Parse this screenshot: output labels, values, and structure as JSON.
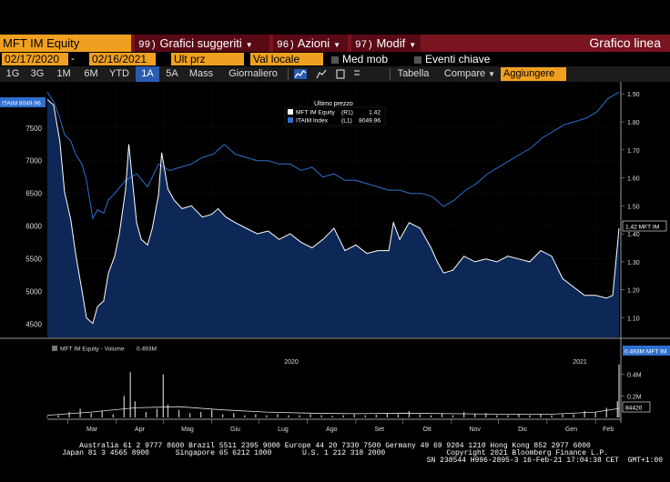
{
  "toolbar": {
    "ticker": "MFT IM Equity",
    "menu": [
      {
        "num": "99)",
        "label": "Grafici suggeriti"
      },
      {
        "num": "96)",
        "label": "Azioni"
      },
      {
        "num": "97)",
        "label": "Modif"
      }
    ],
    "title": "Grafico linea"
  },
  "settings": {
    "date_from": "02/17/2020",
    "date_to": "02/16/2021",
    "price_field": "Ult prz",
    "currency": "Val locale",
    "moving_avg": "Med mob",
    "key_events": "Eventi chiave"
  },
  "ranges": {
    "buttons": [
      "1G",
      "3G",
      "1M",
      "6M",
      "YTD",
      "1A",
      "5A",
      "Mass",
      "Giornaliero"
    ],
    "active": "1A",
    "table": "Tabella",
    "compare": "Compare",
    "add": "Aggiungere"
  },
  "legend": {
    "title": "Ultimo prezzo",
    "rows": [
      {
        "name": "MFT IM Equity",
        "axis": "(R1)",
        "value": "1.42",
        "color": "#ffffff"
      },
      {
        "name": "ITAIM Index",
        "axis": "(L1)",
        "value": "8049.96",
        "color": "#2f6fd0"
      }
    ]
  },
  "volume_legend": {
    "label": "MFT IM Equity - Volume",
    "value": "0.493M"
  },
  "badges": {
    "left": "ITAIM 8049.96",
    "right": "1.42 MFT IM",
    "vol_last": "0.493M MFT IM",
    "vol_ma": "84420"
  },
  "footer": {
    "line1": "Australia 61 2 9777 8600 Brazil 5511 2395 9000 Europe 44 20 7330 7500 Germany 49 69 9204 1210 Hong Kong 852 2977 6000",
    "line2": "Japan 81 3 4565 8900      Singapore 65 6212 1000       U.S. 1 212 318 2000              Copyright 2021 Bloomberg Finance L.P.",
    "line3": "SN 238544 H996-2895-3 16-Feb-21 17:04:38 CET  GMT+1:00"
  },
  "chart_data": {
    "type": "line",
    "title": "",
    "x_axis": {
      "months": [
        "Mar",
        "Apr",
        "Mag",
        "Giu",
        "Lug",
        "Ago",
        "Set",
        "Ott",
        "Nov",
        "Dic",
        "Gen",
        "Feb"
      ],
      "years": [
        "2020",
        "2021"
      ],
      "range": [
        "2020-02-17",
        "2021-02-16"
      ]
    },
    "left_axis": {
      "ticks": [
        4500,
        5000,
        5500,
        6000,
        6500,
        7000,
        7500
      ],
      "range": [
        4300,
        8150
      ]
    },
    "right_axis": {
      "ticks": [
        "1.10",
        "1.20",
        "1.30",
        "1.40",
        "1.50",
        "1.60",
        "1.70",
        "1.80",
        "1.90"
      ],
      "range": [
        1.03,
        1.93
      ]
    },
    "volume_axis": {
      "ticks": [
        "0.2M",
        "0.4M"
      ],
      "range": [
        0,
        0.6
      ]
    },
    "series": [
      {
        "name": "MFT IM Equity",
        "axis": "right",
        "color": "#ffffff",
        "fill": "#0e2a5c",
        "points": [
          [
            "2020-02-17",
            1.88
          ],
          [
            "2020-02-21",
            1.86
          ],
          [
            "2020-02-25",
            1.73
          ],
          [
            "2020-02-28",
            1.55
          ],
          [
            "2020-03-03",
            1.45
          ],
          [
            "2020-03-06",
            1.33
          ],
          [
            "2020-03-10",
            1.2
          ],
          [
            "2020-03-13",
            1.1
          ],
          [
            "2020-03-17",
            1.08
          ],
          [
            "2020-03-20",
            1.14
          ],
          [
            "2020-03-24",
            1.16
          ],
          [
            "2020-03-27",
            1.26
          ],
          [
            "2020-03-31",
            1.32
          ],
          [
            "2020-04-03",
            1.4
          ],
          [
            "2020-04-07",
            1.56
          ],
          [
            "2020-04-09",
            1.72
          ],
          [
            "2020-04-14",
            1.44
          ],
          [
            "2020-04-17",
            1.38
          ],
          [
            "2020-04-21",
            1.36
          ],
          [
            "2020-04-24",
            1.42
          ],
          [
            "2020-04-28",
            1.54
          ],
          [
            "2020-04-30",
            1.69
          ],
          [
            "2020-05-04",
            1.56
          ],
          [
            "2020-05-08",
            1.52
          ],
          [
            "2020-05-13",
            1.49
          ],
          [
            "2020-05-19",
            1.5
          ],
          [
            "2020-05-26",
            1.46
          ],
          [
            "2020-06-01",
            1.47
          ],
          [
            "2020-06-05",
            1.49
          ],
          [
            "2020-06-10",
            1.46
          ],
          [
            "2020-06-16",
            1.44
          ],
          [
            "2020-06-23",
            1.42
          ],
          [
            "2020-06-30",
            1.4
          ],
          [
            "2020-07-07",
            1.41
          ],
          [
            "2020-07-14",
            1.38
          ],
          [
            "2020-07-21",
            1.4
          ],
          [
            "2020-07-28",
            1.37
          ],
          [
            "2020-08-04",
            1.35
          ],
          [
            "2020-08-11",
            1.38
          ],
          [
            "2020-08-18",
            1.42
          ],
          [
            "2020-08-25",
            1.34
          ],
          [
            "2020-09-01",
            1.36
          ],
          [
            "2020-09-08",
            1.33
          ],
          [
            "2020-09-15",
            1.34
          ],
          [
            "2020-09-22",
            1.34
          ],
          [
            "2020-09-25",
            1.44
          ],
          [
            "2020-09-29",
            1.38
          ],
          [
            "2020-10-05",
            1.44
          ],
          [
            "2020-10-12",
            1.42
          ],
          [
            "2020-10-19",
            1.35
          ],
          [
            "2020-10-23",
            1.3
          ],
          [
            "2020-10-27",
            1.26
          ],
          [
            "2020-11-02",
            1.27
          ],
          [
            "2020-11-09",
            1.32
          ],
          [
            "2020-11-16",
            1.3
          ],
          [
            "2020-11-23",
            1.31
          ],
          [
            "2020-11-30",
            1.3
          ],
          [
            "2020-12-07",
            1.32
          ],
          [
            "2020-12-14",
            1.31
          ],
          [
            "2020-12-21",
            1.3
          ],
          [
            "2020-12-28",
            1.34
          ],
          [
            "2021-01-04",
            1.32
          ],
          [
            "2021-01-11",
            1.24
          ],
          [
            "2021-01-18",
            1.21
          ],
          [
            "2021-01-25",
            1.18
          ],
          [
            "2021-02-01",
            1.18
          ],
          [
            "2021-02-08",
            1.17
          ],
          [
            "2021-02-12",
            1.18
          ],
          [
            "2021-02-16",
            1.42
          ]
        ]
      },
      {
        "name": "ITAIM Index",
        "axis": "left",
        "color": "#2f6fd0",
        "points": [
          [
            "2020-02-17",
            8050
          ],
          [
            "2020-02-21",
            7900
          ],
          [
            "2020-02-25",
            7650
          ],
          [
            "2020-02-28",
            7400
          ],
          [
            "2020-03-03",
            7300
          ],
          [
            "2020-03-06",
            7100
          ],
          [
            "2020-03-10",
            6950
          ],
          [
            "2020-03-13",
            6700
          ],
          [
            "2020-03-17",
            6120
          ],
          [
            "2020-03-20",
            6250
          ],
          [
            "2020-03-24",
            6200
          ],
          [
            "2020-03-27",
            6400
          ],
          [
            "2020-03-31",
            6500
          ],
          [
            "2020-04-07",
            6700
          ],
          [
            "2020-04-14",
            6800
          ],
          [
            "2020-04-21",
            6600
          ],
          [
            "2020-04-28",
            6950
          ],
          [
            "2020-05-05",
            6850
          ],
          [
            "2020-05-12",
            6900
          ],
          [
            "2020-05-19",
            6950
          ],
          [
            "2020-05-26",
            7050
          ],
          [
            "2020-06-02",
            7100
          ],
          [
            "2020-06-09",
            7250
          ],
          [
            "2020-06-16",
            7100
          ],
          [
            "2020-06-23",
            7050
          ],
          [
            "2020-06-30",
            7000
          ],
          [
            "2020-07-07",
            7000
          ],
          [
            "2020-07-14",
            6950
          ],
          [
            "2020-07-21",
            6950
          ],
          [
            "2020-07-28",
            6850
          ],
          [
            "2020-08-04",
            6900
          ],
          [
            "2020-08-11",
            6750
          ],
          [
            "2020-08-18",
            6800
          ],
          [
            "2020-08-25",
            6700
          ],
          [
            "2020-09-01",
            6700
          ],
          [
            "2020-09-08",
            6650
          ],
          [
            "2020-09-15",
            6600
          ],
          [
            "2020-09-22",
            6550
          ],
          [
            "2020-09-29",
            6550
          ],
          [
            "2020-10-06",
            6500
          ],
          [
            "2020-10-13",
            6500
          ],
          [
            "2020-10-20",
            6450
          ],
          [
            "2020-10-27",
            6300
          ],
          [
            "2020-11-03",
            6400
          ],
          [
            "2020-11-10",
            6550
          ],
          [
            "2020-11-17",
            6650
          ],
          [
            "2020-11-24",
            6800
          ],
          [
            "2020-12-01",
            6900
          ],
          [
            "2020-12-08",
            7000
          ],
          [
            "2020-12-15",
            7100
          ],
          [
            "2020-12-22",
            7200
          ],
          [
            "2020-12-29",
            7350
          ],
          [
            "2021-01-05",
            7450
          ],
          [
            "2021-01-12",
            7550
          ],
          [
            "2021-01-19",
            7600
          ],
          [
            "2021-01-26",
            7650
          ],
          [
            "2021-02-02",
            7750
          ],
          [
            "2021-02-09",
            7950
          ],
          [
            "2021-02-16",
            8050
          ]
        ]
      }
    ],
    "volume": {
      "name": "MFT IM Equity - Volume",
      "unit": "M",
      "bars": [
        [
          "2020-02-17",
          0.01
        ],
        [
          "2020-02-24",
          0.02
        ],
        [
          "2020-03-02",
          0.05
        ],
        [
          "2020-03-09",
          0.08
        ],
        [
          "2020-03-16",
          0.04
        ],
        [
          "2020-03-23",
          0.06
        ],
        [
          "2020-03-30",
          0.03
        ],
        [
          "2020-04-06",
          0.2
        ],
        [
          "2020-04-10",
          0.42
        ],
        [
          "2020-04-13",
          0.15
        ],
        [
          "2020-04-20",
          0.05
        ],
        [
          "2020-04-27",
          0.08
        ],
        [
          "2020-05-01",
          0.4
        ],
        [
          "2020-05-04",
          0.12
        ],
        [
          "2020-05-11",
          0.07
        ],
        [
          "2020-05-18",
          0.04
        ],
        [
          "2020-05-25",
          0.05
        ],
        [
          "2020-06-01",
          0.07
        ],
        [
          "2020-06-08",
          0.03
        ],
        [
          "2020-06-15",
          0.04
        ],
        [
          "2020-06-22",
          0.02
        ],
        [
          "2020-06-29",
          0.03
        ],
        [
          "2020-07-06",
          0.02
        ],
        [
          "2020-07-13",
          0.03
        ],
        [
          "2020-07-20",
          0.02
        ],
        [
          "2020-07-27",
          0.02
        ],
        [
          "2020-08-03",
          0.03
        ],
        [
          "2020-08-10",
          0.02
        ],
        [
          "2020-08-17",
          0.015
        ],
        [
          "2020-08-24",
          0.02
        ],
        [
          "2020-08-31",
          0.03
        ],
        [
          "2020-09-07",
          0.02
        ],
        [
          "2020-09-14",
          0.025
        ],
        [
          "2020-09-21",
          0.04
        ],
        [
          "2020-09-28",
          0.03
        ],
        [
          "2020-10-05",
          0.06
        ],
        [
          "2020-10-12",
          0.03
        ],
        [
          "2020-10-19",
          0.02
        ],
        [
          "2020-10-26",
          0.04
        ],
        [
          "2020-11-02",
          0.02
        ],
        [
          "2020-11-09",
          0.05
        ],
        [
          "2020-11-16",
          0.03
        ],
        [
          "2020-11-23",
          0.04
        ],
        [
          "2020-11-30",
          0.02
        ],
        [
          "2020-12-07",
          0.02
        ],
        [
          "2020-12-14",
          0.03
        ],
        [
          "2020-12-21",
          0.02
        ],
        [
          "2020-12-28",
          0.03
        ],
        [
          "2021-01-04",
          0.02
        ],
        [
          "2021-01-11",
          0.03
        ],
        [
          "2021-01-18",
          0.03
        ],
        [
          "2021-01-25",
          0.06
        ],
        [
          "2021-02-01",
          0.05
        ],
        [
          "2021-02-08",
          0.09
        ],
        [
          "2021-02-15",
          0.15
        ],
        [
          "2021-02-16",
          0.493
        ]
      ],
      "moving_avg": [
        [
          "2020-02-17",
          0.02
        ],
        [
          "2020-03-16",
          0.05
        ],
        [
          "2020-04-13",
          0.09
        ],
        [
          "2020-05-11",
          0.1
        ],
        [
          "2020-06-08",
          0.07
        ],
        [
          "2020-07-06",
          0.05
        ],
        [
          "2020-08-03",
          0.04
        ],
        [
          "2020-09-01",
          0.035
        ],
        [
          "2020-10-01",
          0.04
        ],
        [
          "2020-11-02",
          0.035
        ],
        [
          "2020-12-01",
          0.03
        ],
        [
          "2021-01-04",
          0.03
        ],
        [
          "2021-02-01",
          0.05
        ],
        [
          "2021-02-16",
          0.084
        ]
      ]
    }
  }
}
